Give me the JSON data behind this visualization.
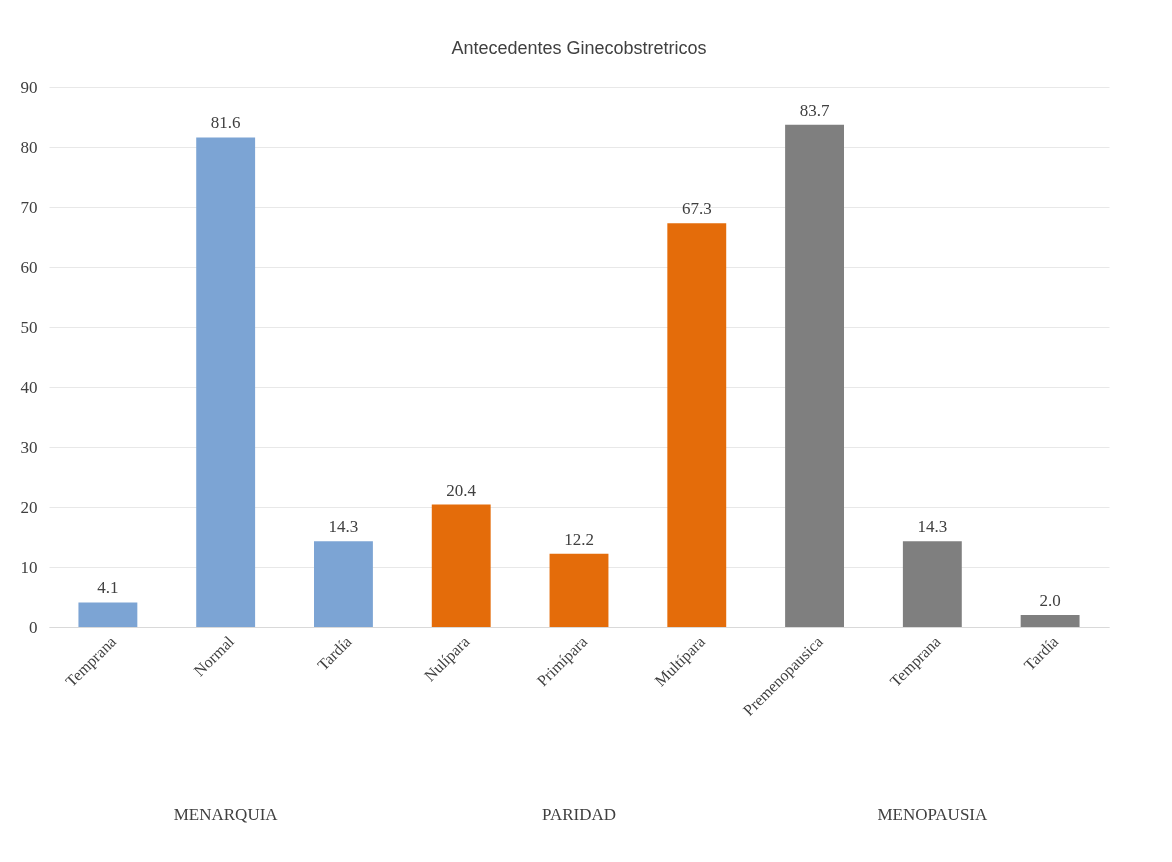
{
  "chart_data": {
    "type": "bar",
    "title": "Antecedentes Ginecobstretricos",
    "categories": [
      "Temprana",
      "Normal",
      "Tardía",
      "Nulípara",
      "Primípara",
      "Multípara",
      "Premenopausica",
      "Temprana",
      "Tardía"
    ],
    "values": [
      4.1,
      81.6,
      14.3,
      20.4,
      12.2,
      67.3,
      83.7,
      14.3,
      2.0
    ],
    "value_labels": [
      "4.1",
      "81.6",
      "14.3",
      "20.4",
      "12.2",
      "67.3",
      "83.7",
      "14.3",
      "2.0"
    ],
    "colors": [
      "#7ca4d4",
      "#7ca4d4",
      "#7ca4d4",
      "#e46c0a",
      "#e46c0a",
      "#e46c0a",
      "#7f7f7f",
      "#7f7f7f",
      "#7f7f7f"
    ],
    "ylim": [
      0,
      90
    ],
    "yticks": [
      0,
      10,
      20,
      30,
      40,
      50,
      60,
      70,
      80,
      90
    ],
    "grid": "y",
    "annotations": [
      "MENARQUIA",
      "PARIDAD",
      "MENOPAUSIA"
    ]
  }
}
